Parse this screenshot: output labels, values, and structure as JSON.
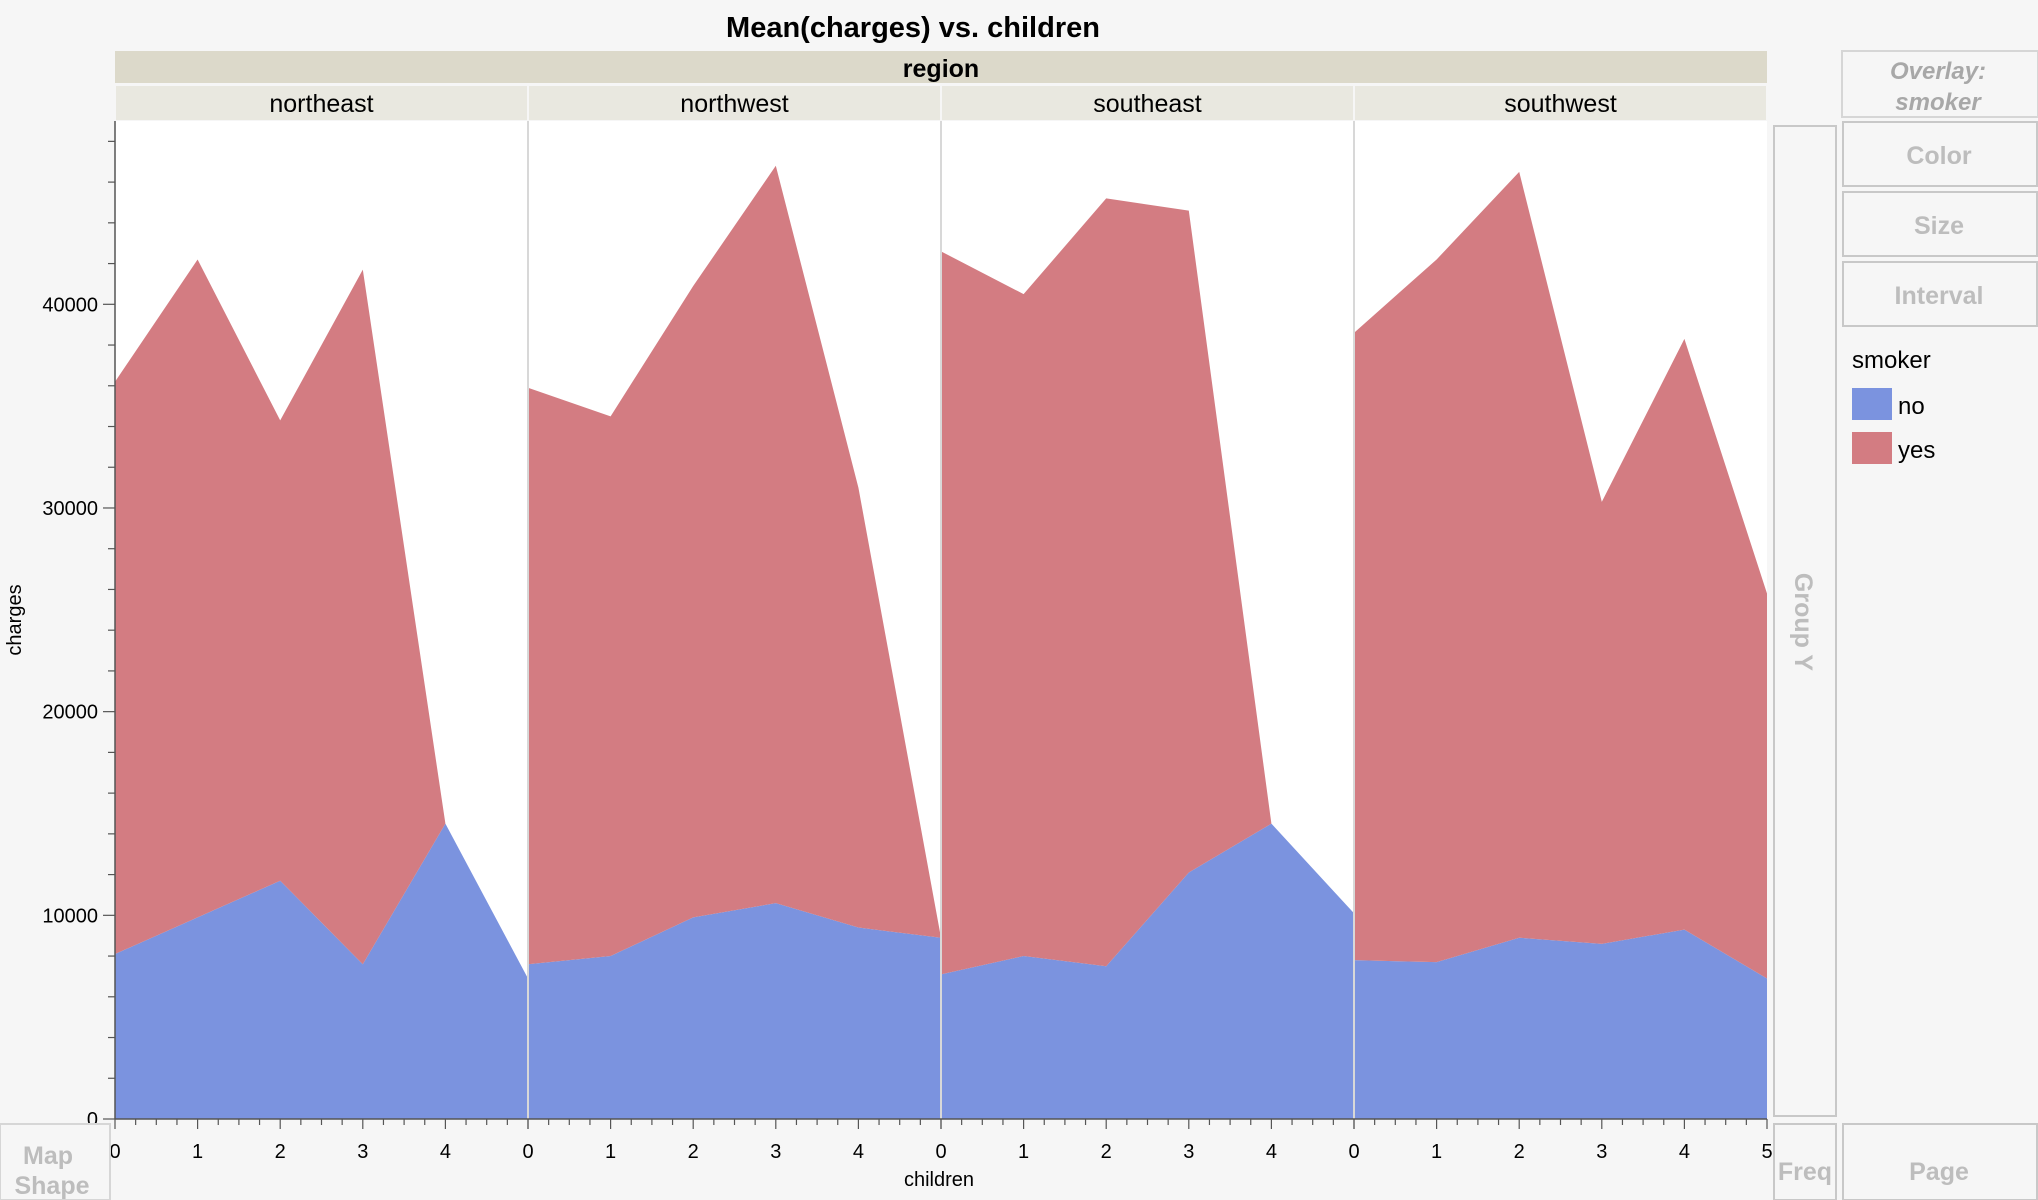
{
  "chart_data": {
    "type": "area",
    "stacked": true,
    "title": "Mean(charges) vs. children",
    "xlabel": "children",
    "ylabel": "charges",
    "facet_label": "region",
    "ylim": [
      0,
      49000
    ],
    "yticks": [
      0,
      10000,
      20000,
      30000,
      40000
    ],
    "panels": [
      {
        "name": "northeast",
        "x": [
          0,
          1,
          2,
          3,
          4,
          5
        ],
        "xtick_labels": [
          "0",
          "1",
          "2",
          "3",
          "4"
        ],
        "series": [
          {
            "name": "no",
            "values": [
              8100,
              9900,
              11700,
              7600,
              14500,
              6900
            ]
          },
          {
            "name": "yes",
            "values": [
              28100,
              32300,
              22600,
              34100,
              0,
              0
            ]
          }
        ]
      },
      {
        "name": "northwest",
        "x": [
          0,
          1,
          2,
          3,
          4,
          5
        ],
        "xtick_labels": [
          "0",
          "1",
          "2",
          "3",
          "4"
        ],
        "series": [
          {
            "name": "no",
            "values": [
              7600,
              8000,
              9900,
              10600,
              9400,
              8900
            ]
          },
          {
            "name": "yes",
            "values": [
              28300,
              26500,
              31000,
              36200,
              21600,
              0
            ]
          }
        ]
      },
      {
        "name": "southeast",
        "x": [
          0,
          1,
          2,
          3,
          4,
          5
        ],
        "xtick_labels": [
          "0",
          "1",
          "2",
          "3",
          "4"
        ],
        "series": [
          {
            "name": "no",
            "values": [
              7100,
              8000,
              7500,
              12100,
              14500,
              10100
            ]
          },
          {
            "name": "yes",
            "values": [
              35500,
              32500,
              37700,
              32500,
              0,
              0
            ]
          }
        ]
      },
      {
        "name": "southwest",
        "x": [
          0,
          1,
          2,
          3,
          4,
          5
        ],
        "xtick_labels": [
          "0",
          "1",
          "2",
          "3",
          "4",
          "5"
        ],
        "series": [
          {
            "name": "no",
            "values": [
              7800,
              7700,
              8900,
              8600,
              9300,
              6900
            ]
          },
          {
            "name": "yes",
            "values": [
              30800,
              34500,
              37600,
              21700,
              29000,
              18900
            ]
          }
        ]
      }
    ],
    "colors": {
      "no": "#7b93df",
      "yes": "#d37c82"
    },
    "grid": false,
    "legend": {
      "title": "smoker",
      "items": [
        "no",
        "yes"
      ],
      "placement": "right"
    }
  },
  "ui": {
    "overlay_line1": "Overlay:",
    "overlay_line2": "smoker",
    "color_zone": "Color",
    "size_zone": "Size",
    "interval_zone": "Interval",
    "group_y_zone": "Group Y",
    "map_shape_line1": "Map",
    "map_shape_line2": "Shape",
    "freq_zone": "Freq",
    "page_zone": "Page"
  }
}
